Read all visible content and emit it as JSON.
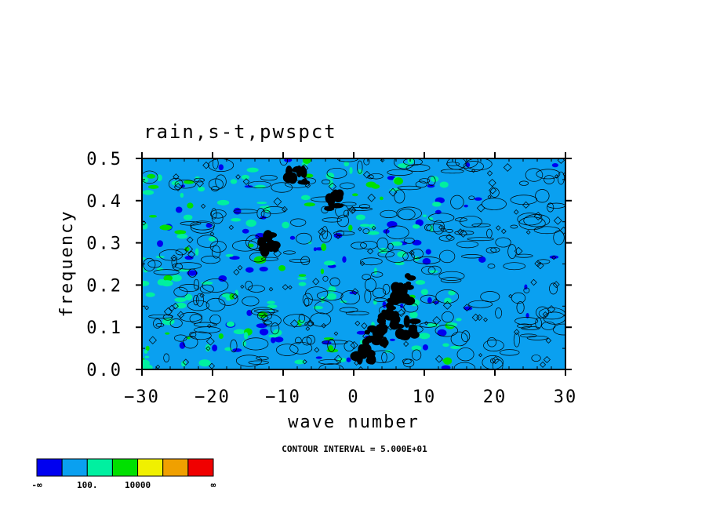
{
  "chart_data": {
    "type": "heatmap",
    "title": "rain,s-t,pwspct",
    "xlabel": "wave number",
    "ylabel": "frequency",
    "xlim": [
      -30,
      30
    ],
    "ylim": [
      0,
      0.5
    ],
    "x_ticks": [
      -30,
      -20,
      -10,
      0,
      10,
      20,
      30
    ],
    "x_tick_labels": [
      "−30",
      "−20",
      "−10",
      "0",
      "10",
      "20",
      "30"
    ],
    "y_ticks": [
      0,
      0.1,
      0.2,
      0.3,
      0.4,
      0.5
    ],
    "y_tick_labels": [
      "0.0",
      "0.1",
      "0.2",
      "0.3",
      "0.4",
      "0.5"
    ],
    "contour_note": "CONTOUR INTERVAL = 5.000E+01",
    "background_level_color": "#0aa0f0",
    "colorbar": {
      "colors": [
        "#0000f0",
        "#0aa0f0",
        "#00f0a0",
        "#00e000",
        "#f0f000",
        "#f0a000",
        "#f00000"
      ],
      "labels": [
        "-∞",
        "100.",
        "10000",
        "∞"
      ],
      "label_positions": [
        0,
        2,
        4,
        7
      ]
    },
    "high_regions": [
      {
        "x": 3.5,
        "y": 0.08,
        "level": "black"
      },
      {
        "x": 5.0,
        "y": 0.12,
        "level": "black"
      },
      {
        "x": 7.0,
        "y": 0.18,
        "level": "black"
      },
      {
        "x": 1.5,
        "y": 0.04,
        "level": "black"
      },
      {
        "x": -3.0,
        "y": 0.4,
        "level": "black"
      },
      {
        "x": -8.0,
        "y": 0.46,
        "level": "black"
      },
      {
        "x": 7.5,
        "y": 0.1,
        "level": "black"
      },
      {
        "x": -12.0,
        "y": 0.3,
        "level": "black"
      }
    ]
  }
}
